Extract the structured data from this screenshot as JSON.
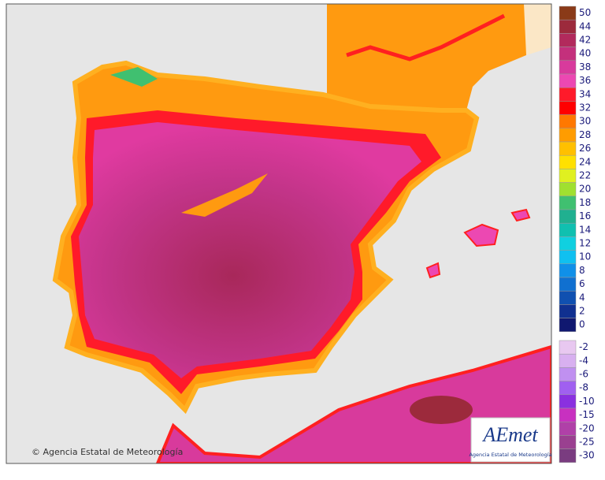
{
  "copyright": "© Agencia Estatal de Meteorología",
  "logo": {
    "name": "AEmet",
    "subtitle": "Agencia Estatal de Meteorología"
  },
  "legend": {
    "positive": {
      "values": [
        50,
        44,
        42,
        40,
        38,
        36,
        34,
        32,
        30,
        28,
        26,
        24,
        22,
        20,
        18,
        16,
        14,
        12,
        10,
        8,
        6,
        4,
        2,
        0
      ],
      "colors": [
        "#8a3a18",
        "#9c2a3c",
        "#b22a5c",
        "#c4307c",
        "#d83a9c",
        "#ec48b2",
        "#ff1a2a",
        "#ff0000",
        "#ff7800",
        "#ff9c00",
        "#ffc000",
        "#ffe000",
        "#e0f020",
        "#a0e030",
        "#40c070",
        "#20b090",
        "#10c0b0",
        "#10d0e0",
        "#10c0f0",
        "#1090e8",
        "#1070d0",
        "#1050b0",
        "#103090",
        "#101870"
      ]
    },
    "negative": {
      "values": [
        -2,
        -4,
        -6,
        -8,
        -10,
        -15,
        -20,
        -25,
        -30
      ],
      "colors": [
        "#e8c8f0",
        "#d8b0f0",
        "#c090f0",
        "#a060f0",
        "#8a30e0",
        "#c830c0",
        "#b040a8",
        "#9a4090",
        "#7a3c80"
      ]
    }
  }
}
